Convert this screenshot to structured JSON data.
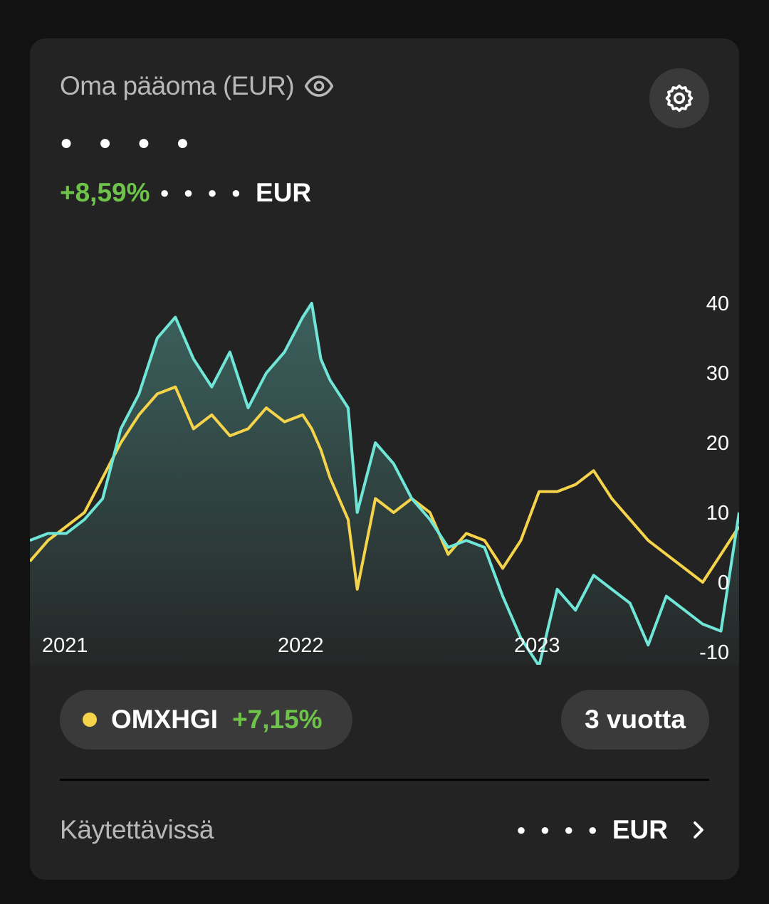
{
  "header": {
    "title": "Oma pääoma (EUR)",
    "balance_masked": "● ● ● ●",
    "change_pct": "+8,59%",
    "change_amount_masked": "● ● ● ●",
    "change_currency": "EUR"
  },
  "icons": {
    "visibility": "eye-icon",
    "settings": "gear-icon",
    "chevron": "chevron-right-icon"
  },
  "colors": {
    "portfolio_line": "#6fe6d8",
    "benchmark_line": "#f5d34a",
    "positive": "#6dc448",
    "card_bg": "#232323",
    "pill_bg": "#3a3a3a"
  },
  "chart_data": {
    "type": "line",
    "x_tick_labels": [
      "2021",
      "2022",
      "2023"
    ],
    "y_tick_labels": [
      "40",
      "30",
      "20",
      "10",
      "0",
      "-10"
    ],
    "ylim": [
      -10,
      40
    ],
    "xlim": [
      0,
      156
    ],
    "grid": false,
    "series": [
      {
        "name": "portfolio",
        "fill": true,
        "x": [
          0,
          4,
          8,
          12,
          16,
          20,
          24,
          28,
          32,
          36,
          40,
          44,
          48,
          52,
          56,
          60,
          62,
          64,
          66,
          70,
          72,
          76,
          80,
          84,
          88,
          92,
          96,
          100,
          104,
          108,
          112,
          116,
          120,
          124,
          128,
          132,
          136,
          140,
          144,
          148,
          152,
          156
        ],
        "y": [
          6,
          7,
          7,
          9,
          12,
          22,
          27,
          35,
          38,
          32,
          28,
          33,
          25,
          30,
          33,
          38,
          40,
          32,
          29,
          25,
          10,
          20,
          17,
          12,
          9,
          5,
          6,
          5,
          -2,
          -8,
          -12,
          -1,
          -4,
          1,
          -1,
          -3,
          -9,
          -2,
          -4,
          -6,
          -7,
          10
        ]
      },
      {
        "name": "OMXHGI",
        "fill": false,
        "x": [
          0,
          4,
          8,
          12,
          16,
          20,
          24,
          28,
          32,
          36,
          40,
          44,
          48,
          52,
          56,
          60,
          62,
          64,
          66,
          70,
          72,
          76,
          80,
          84,
          88,
          92,
          96,
          100,
          104,
          108,
          112,
          116,
          120,
          124,
          128,
          132,
          136,
          140,
          144,
          148,
          152,
          156
        ],
        "y": [
          3,
          6,
          8,
          10,
          15,
          20,
          24,
          27,
          28,
          22,
          24,
          21,
          22,
          25,
          23,
          24,
          22,
          19,
          15,
          9,
          -1,
          12,
          10,
          12,
          10,
          4,
          7,
          6,
          2,
          6,
          13,
          13,
          14,
          16,
          12,
          9,
          6,
          4,
          2,
          0,
          4,
          8
        ]
      }
    ]
  },
  "benchmark": {
    "name": "OMXHGI",
    "change_pct": "+7,15%"
  },
  "period": {
    "label": "3 vuotta"
  },
  "available": {
    "label": "Käytettävissä",
    "value_masked": "● ● ● ●",
    "currency": "EUR"
  }
}
